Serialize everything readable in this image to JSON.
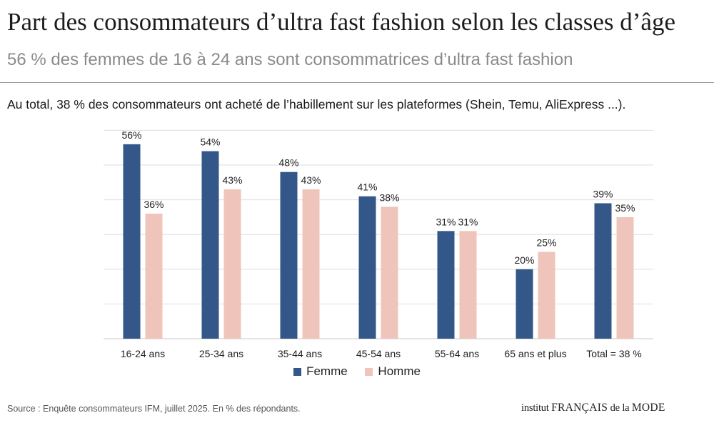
{
  "header": {
    "title": "Part des consommateurs d’ultra fast fashion selon les classes d’âge",
    "subtitle": "56 % des femmes de 16 à 24 ans sont consommatrices d’ultra fast fashion",
    "note": "Au total, 38 % des consommateurs ont acheté de l’habillement sur les plateformes (Shein, Temu, AliExpress ...)."
  },
  "chart_data": {
    "type": "bar",
    "categories": [
      "16-24 ans",
      "25-34 ans",
      "35-44 ans",
      "45-54 ans",
      "55-64 ans",
      "65 ans et plus",
      "Total = 38 %"
    ],
    "series": [
      {
        "name": "Femme",
        "values": [
          56,
          54,
          48,
          41,
          31,
          20,
          39
        ],
        "color": "#34578a"
      },
      {
        "name": "Homme",
        "values": [
          36,
          43,
          43,
          38,
          31,
          25,
          35
        ],
        "color": "#efc4bb"
      }
    ],
    "value_suffix": "%",
    "ylim": [
      0,
      60
    ],
    "grid": true,
    "legend_position": "bottom"
  },
  "footer": {
    "source": "Source : Enquête consommateurs IFM, juillet 2025. En % des répondants.",
    "logo_a": "institut",
    "logo_b": "FRANÇAIS",
    "logo_c": "de la",
    "logo_d": "MODE"
  }
}
